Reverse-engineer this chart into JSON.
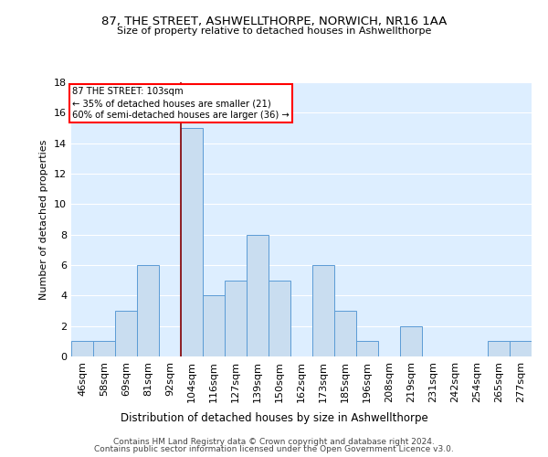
{
  "title": "87, THE STREET, ASHWELLTHORPE, NORWICH, NR16 1AA",
  "subtitle": "Size of property relative to detached houses in Ashwellthorpe",
  "xlabel": "Distribution of detached houses by size in Ashwellthorpe",
  "ylabel": "Number of detached properties",
  "footer1": "Contains HM Land Registry data © Crown copyright and database right 2024.",
  "footer2": "Contains public sector information licensed under the Open Government Licence v3.0.",
  "annotation_line1": "87 THE STREET: 103sqm",
  "annotation_line2": "← 35% of detached houses are smaller (21)",
  "annotation_line3": "60% of semi-detached houses are larger (36) →",
  "bar_color": "#c9ddf0",
  "bar_edge_color": "#5b9bd5",
  "marker_color": "#8b0000",
  "background_color": "#ddeeff",
  "bin_labels": [
    "46sqm",
    "58sqm",
    "69sqm",
    "81sqm",
    "92sqm",
    "104sqm",
    "116sqm",
    "127sqm",
    "139sqm",
    "150sqm",
    "162sqm",
    "173sqm",
    "185sqm",
    "196sqm",
    "208sqm",
    "219sqm",
    "231sqm",
    "242sqm",
    "254sqm",
    "265sqm",
    "277sqm"
  ],
  "bar_values": [
    1,
    1,
    3,
    6,
    0,
    15,
    4,
    5,
    8,
    5,
    0,
    6,
    3,
    1,
    0,
    2,
    0,
    0,
    0,
    1,
    1
  ],
  "marker_bin_index": 5,
  "ylim": [
    0,
    18
  ],
  "yticks": [
    0,
    2,
    4,
    6,
    8,
    10,
    12,
    14,
    16,
    18
  ]
}
